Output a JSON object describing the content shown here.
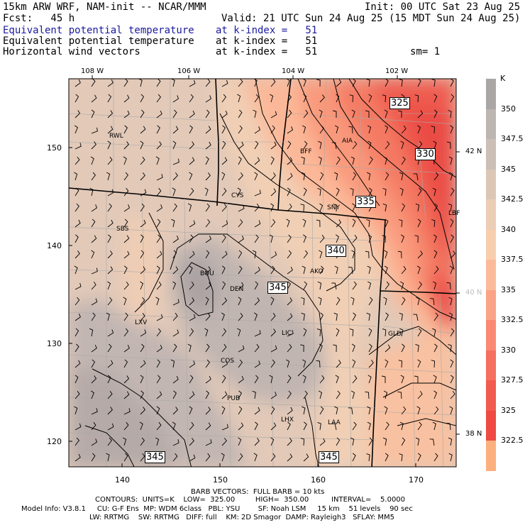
{
  "header": {
    "line1_left": "15km ARW WRF, NAM-init -- NCAR/MMM",
    "line1_right": "Init: 00 UTC Sat 23 Aug 25",
    "line2_left": "Fcst:   45 h",
    "line2_right": "Valid: 21 UTC Sun 24 Aug 25 (15 MDT Sun 24 Aug 25)",
    "fields": [
      {
        "name": "Equivalent potential temperature",
        "level": "at k-index =   51",
        "extra": "",
        "color": "#1a1aa0"
      },
      {
        "name": "Equivalent potential temperature",
        "level": "at k-index =   51",
        "extra": "",
        "color": "#000000"
      },
      {
        "name": "Horizontal wind vectors",
        "level": "at k-index =   51",
        "extra": "sm= 1",
        "color": "#000000"
      }
    ]
  },
  "map": {
    "top_lon_labels": [
      "108 W",
      "106 W",
      "104 W",
      "102 W"
    ],
    "right_lat_labels": [
      "42 N",
      "40 N",
      "38 N"
    ],
    "left_grid_labels": [
      "150",
      "140",
      "130",
      "120"
    ],
    "bottom_grid_labels": [
      "140",
      "150",
      "160",
      "170"
    ],
    "stations": [
      "RWL",
      "BFF",
      "AIA",
      "CYS",
      "SNY",
      "SBS",
      "AKO",
      "BOU",
      "DEN",
      "LXV",
      "LIC",
      "GLD",
      "COS",
      "PUB",
      "LHX",
      "LAA",
      "LBF"
    ],
    "contour_labels": [
      "325",
      "330",
      "335",
      "340",
      "345",
      "345",
      "345"
    ]
  },
  "colorbar": {
    "unit": "K",
    "labels": [
      "350",
      "347.5",
      "345",
      "342.5",
      "340",
      "337.5",
      "335",
      "332.5",
      "330",
      "327.5",
      "325",
      "322.5"
    ],
    "colors": [
      "#aaa6a6",
      "#bdb5b1",
      "#cbbfb6",
      "#dcc7b7",
      "#eccdb6",
      "#f8cfae",
      "#fbbb9b",
      "#fba386",
      "#fa8a73",
      "#f6705f",
      "#f25b4f",
      "#ee4a43",
      "#fbb07e"
    ]
  },
  "footer": {
    "line1": "BARB VECTORS:  FULL BARB = 10 kts",
    "line2": "CONTOURS:  UNITS=K    LOW=  325.00         HIGH=  350.00          INTERVAL=    5.0000",
    "line3": "Model Info: V3.8.1     CU: G-F Ens  MP: WDM 6class   PBL: YSU        SF: Noah LSM     15 km    51 levels    90 sec",
    "line4": "LW: RRTMG    SW: RRTMG   DIFF: full    KM: 2D Smagor  DAMP: Rayleigh3   SFLAY: MM5"
  }
}
